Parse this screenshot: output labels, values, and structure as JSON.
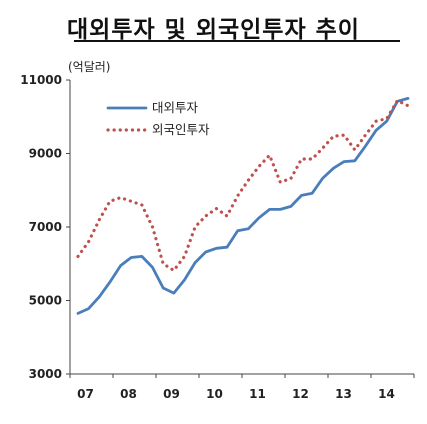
{
  "chart_data": {
    "type": "line",
    "title": "대외투자 및 외국인투자 추이",
    "unit": "(억달러)",
    "x_labels": [
      "07",
      "08",
      "09",
      "10",
      "11",
      "12",
      "13",
      "14"
    ],
    "x": [
      "07Q1",
      "07Q2",
      "07Q3",
      "07Q4",
      "08Q1",
      "08Q2",
      "08Q3",
      "08Q4",
      "09Q1",
      "09Q2",
      "09Q3",
      "09Q4",
      "10Q1",
      "10Q2",
      "10Q3",
      "10Q4",
      "11Q1",
      "11Q2",
      "11Q3",
      "11Q4",
      "12Q1",
      "12Q2",
      "12Q3",
      "12Q4",
      "13Q1",
      "13Q2",
      "13Q3",
      "13Q4",
      "14Q1",
      "14Q2",
      "14Q3",
      "14Q4"
    ],
    "ylim": [
      3000,
      11000
    ],
    "yticks": [
      3000,
      5000,
      7000,
      9000,
      11000
    ],
    "legend_position": "top-left",
    "series": [
      {
        "name": "대외투자",
        "color": "#4a7ebb",
        "style": "solid",
        "values": [
          4650,
          4780,
          5100,
          5500,
          5950,
          6170,
          6200,
          5900,
          5340,
          5200,
          5560,
          6030,
          6320,
          6420,
          6450,
          6900,
          6950,
          7250,
          7480,
          7480,
          7560,
          7860,
          7920,
          8330,
          8600,
          8780,
          8800,
          9200,
          9630,
          9880,
          10420,
          10500
        ]
      },
      {
        "name": "외국인투자",
        "color": "#c0504d",
        "style": "dotted",
        "values": [
          6200,
          6600,
          7200,
          7700,
          7800,
          7700,
          7600,
          7000,
          6000,
          5820,
          6200,
          7000,
          7300,
          7500,
          7300,
          7850,
          8270,
          8650,
          8950,
          8220,
          8320,
          8850,
          8850,
          9150,
          9470,
          9500,
          9100,
          9500,
          9880,
          9950,
          10440,
          10300
        ]
      }
    ]
  }
}
